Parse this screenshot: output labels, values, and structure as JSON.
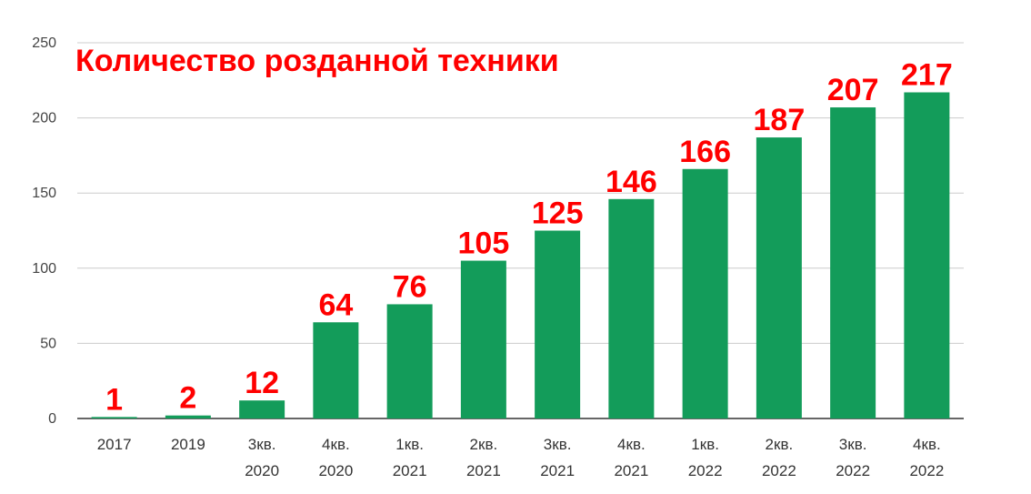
{
  "chart_data": {
    "type": "bar",
    "title": "Количество розданной техники",
    "categories": [
      [
        "2017"
      ],
      [
        "2019"
      ],
      [
        "3кв.",
        "2020"
      ],
      [
        "4кв.",
        "2020"
      ],
      [
        "1кв.",
        "2021"
      ],
      [
        "2кв.",
        "2021"
      ],
      [
        "3кв.",
        "2021"
      ],
      [
        "4кв.",
        "2021"
      ],
      [
        "1кв.",
        "2022"
      ],
      [
        "2кв.",
        "2022"
      ],
      [
        "3кв.",
        "2022"
      ],
      [
        "4кв.",
        "2022"
      ]
    ],
    "values": [
      1,
      2,
      12,
      64,
      76,
      105,
      125,
      146,
      166,
      187,
      207,
      217
    ],
    "ylim": [
      0,
      250
    ],
    "yticks": [
      0,
      50,
      100,
      150,
      200,
      250
    ],
    "grid": true,
    "legend": "none",
    "colors": {
      "bar": "#139c5a",
      "value_label": "#ff0000",
      "title": "#ff0000",
      "grid": "#cccccc",
      "axis": "#333333"
    }
  }
}
